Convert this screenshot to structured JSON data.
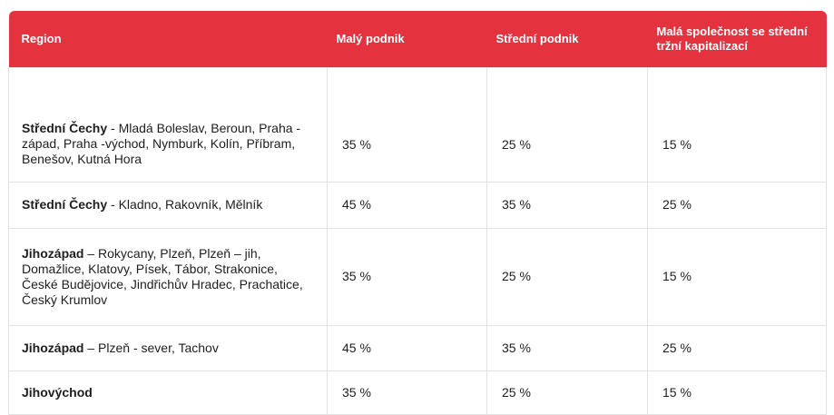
{
  "header": {
    "region": "Region",
    "small": "Malý podnik",
    "medium": "Střední podnik",
    "midcap": "Malá společnost se střední tržní kapitalizací"
  },
  "rows": [
    {
      "region": "Střední Čechy",
      "areas": " - Mladá Boleslav, Beroun, Praha - západ, Praha -východ, Nymburk, Kolín, Příbram, Benešov, Kutná Hora",
      "small": "35 %",
      "medium": "25 %",
      "midcap": "15 %"
    },
    {
      "region": "Střední Čechy",
      "areas": " - Kladno, Rakovník, Mělník",
      "small": "45 %",
      "medium": "35 %",
      "midcap": "25 %"
    },
    {
      "region": "Jihozápad",
      "areas": " – Rokycany, Plzeň, Plzeň – jih, Domažlice, Klatovy, Písek, Tábor, Strakonice, České Budějovice, Jindřichův Hradec, Prachatice, Český Krumlov",
      "small": "35 %",
      "medium": "25 %",
      "midcap": "15 %"
    },
    {
      "region": "Jihozápad",
      "areas": " – Plzeň - sever, Tachov",
      "small": "45 %",
      "medium": "35 %",
      "midcap": "25 %"
    },
    {
      "region": "Jihovýchod",
      "areas": "",
      "small": "35 %",
      "medium": "25 %",
      "midcap": "15 %"
    }
  ]
}
